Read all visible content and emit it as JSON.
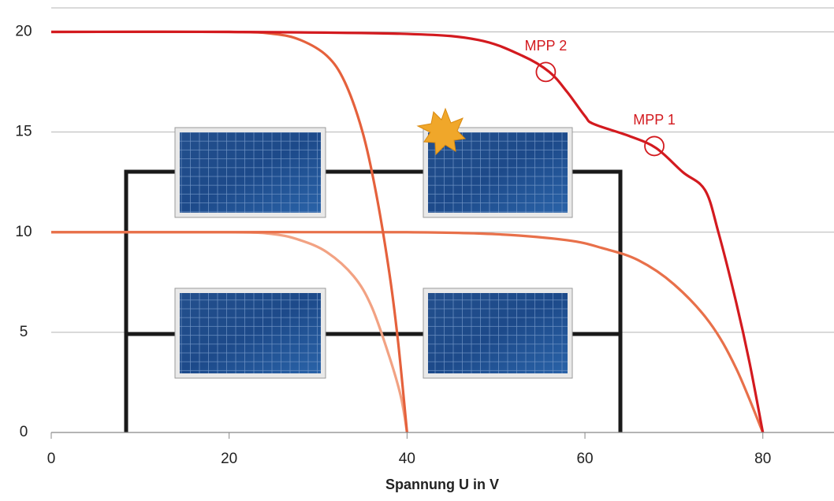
{
  "chart_data": {
    "type": "line",
    "xlabel": "Spannung U in V",
    "xlim": [
      0,
      88
    ],
    "ylim": [
      0,
      21.2
    ],
    "xticks": [
      0,
      20,
      40,
      60,
      80
    ],
    "yticks": [
      0,
      5,
      10,
      15,
      20
    ],
    "grid": true,
    "series": [
      {
        "color": "#d31a1f",
        "x": [
          0,
          20,
          40,
          48,
          53,
          56,
          58,
          60,
          61,
          65,
          68,
          71,
          73.5,
          75,
          77,
          78.5,
          80
        ],
        "values": [
          20,
          20,
          19.9,
          19.6,
          18.8,
          18,
          17,
          15.8,
          15.4,
          14.8,
          14.2,
          13,
          12.1,
          10,
          6.5,
          3.5,
          0
        ]
      },
      {
        "color": "#e5613c",
        "x": [
          0,
          20,
          25,
          28,
          31,
          33,
          35,
          36.5,
          38,
          39,
          40
        ],
        "values": [
          20,
          20,
          19.9,
          19.6,
          18.8,
          17.5,
          15,
          12,
          8,
          4.5,
          0
        ]
      },
      {
        "color": "#e8704a",
        "x": [
          0,
          20,
          40,
          50,
          58,
          62,
          66,
          70,
          74,
          77,
          80
        ],
        "values": [
          10,
          10,
          10,
          9.9,
          9.6,
          9.2,
          8.6,
          7.4,
          5.5,
          3.2,
          0
        ]
      },
      {
        "color": "#f2a283",
        "x": [
          0,
          20,
          25,
          28,
          31,
          34,
          36,
          38,
          39.3,
          40
        ],
        "values": [
          10,
          10,
          9.9,
          9.6,
          9,
          7.8,
          6.3,
          3.8,
          1.8,
          0
        ]
      }
    ],
    "annotations": [
      {
        "text": "MPP 2",
        "x": 55.6,
        "y": 18,
        "color": "#d31a1f"
      },
      {
        "text": "MPP 1",
        "x": 67.8,
        "y": 14.3,
        "color": "#d31a1f"
      }
    ]
  }
}
